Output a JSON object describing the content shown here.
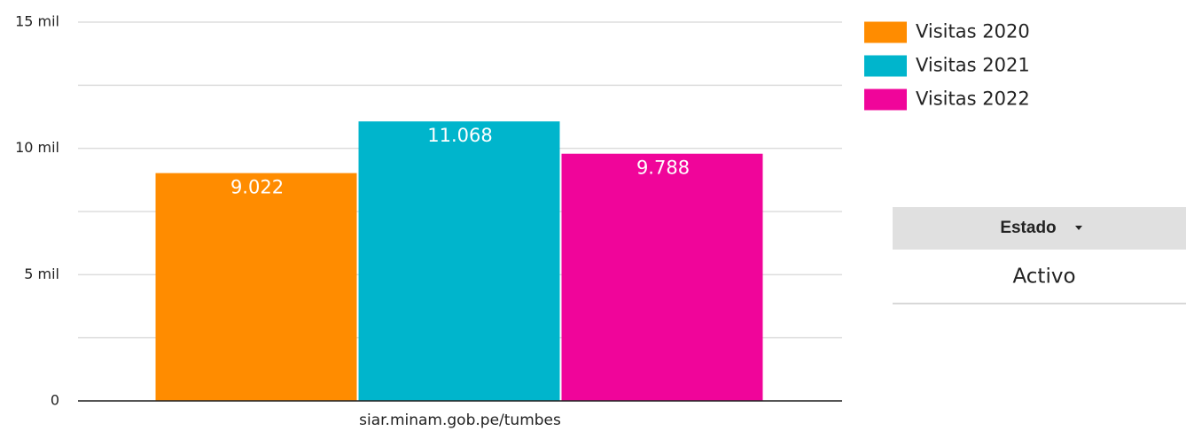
{
  "chart_data": {
    "type": "bar",
    "categories": [
      "siar.minam.gob.pe/tumbes"
    ],
    "series": [
      {
        "name": "Visitas 2020",
        "color": "#ff8c00",
        "values": [
          9022
        ],
        "value_labels": [
          "9.022"
        ]
      },
      {
        "name": "Visitas 2021",
        "color": "#00b5cc",
        "values": [
          11068
        ],
        "value_labels": [
          "11.068"
        ]
      },
      {
        "name": "Visitas 2022",
        "color": "#f0059a",
        "values": [
          9788
        ],
        "value_labels": [
          "9.788"
        ]
      }
    ],
    "ylim": [
      0,
      15000
    ],
    "yticks": [
      {
        "value": 0,
        "label": "0"
      },
      {
        "value": 5000,
        "label": "5 mil"
      },
      {
        "value": 10000,
        "label": "10 mil"
      },
      {
        "value": 15000,
        "label": "15 mil"
      }
    ],
    "minor_yticks": [
      2500,
      7500,
      12500
    ],
    "grid": true,
    "legend": "right"
  },
  "filter": {
    "label": "Estado",
    "value": "Activo"
  }
}
